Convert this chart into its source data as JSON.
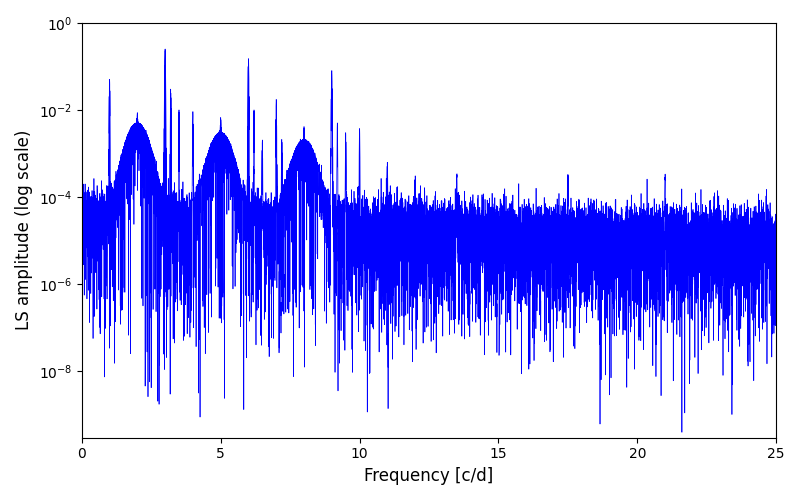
{
  "xlabel": "Frequency [c/d]",
  "ylabel": "LS amplitude (log scale)",
  "line_color": "#0000ff",
  "xlim": [
    0,
    25
  ],
  "ylim": [
    3e-10,
    1.0
  ],
  "background_color": "#ffffff",
  "figsize": [
    8.0,
    5.0
  ],
  "dpi": 100,
  "xticks": [
    0,
    5,
    10,
    15,
    20,
    25
  ],
  "linewidth": 0.5
}
